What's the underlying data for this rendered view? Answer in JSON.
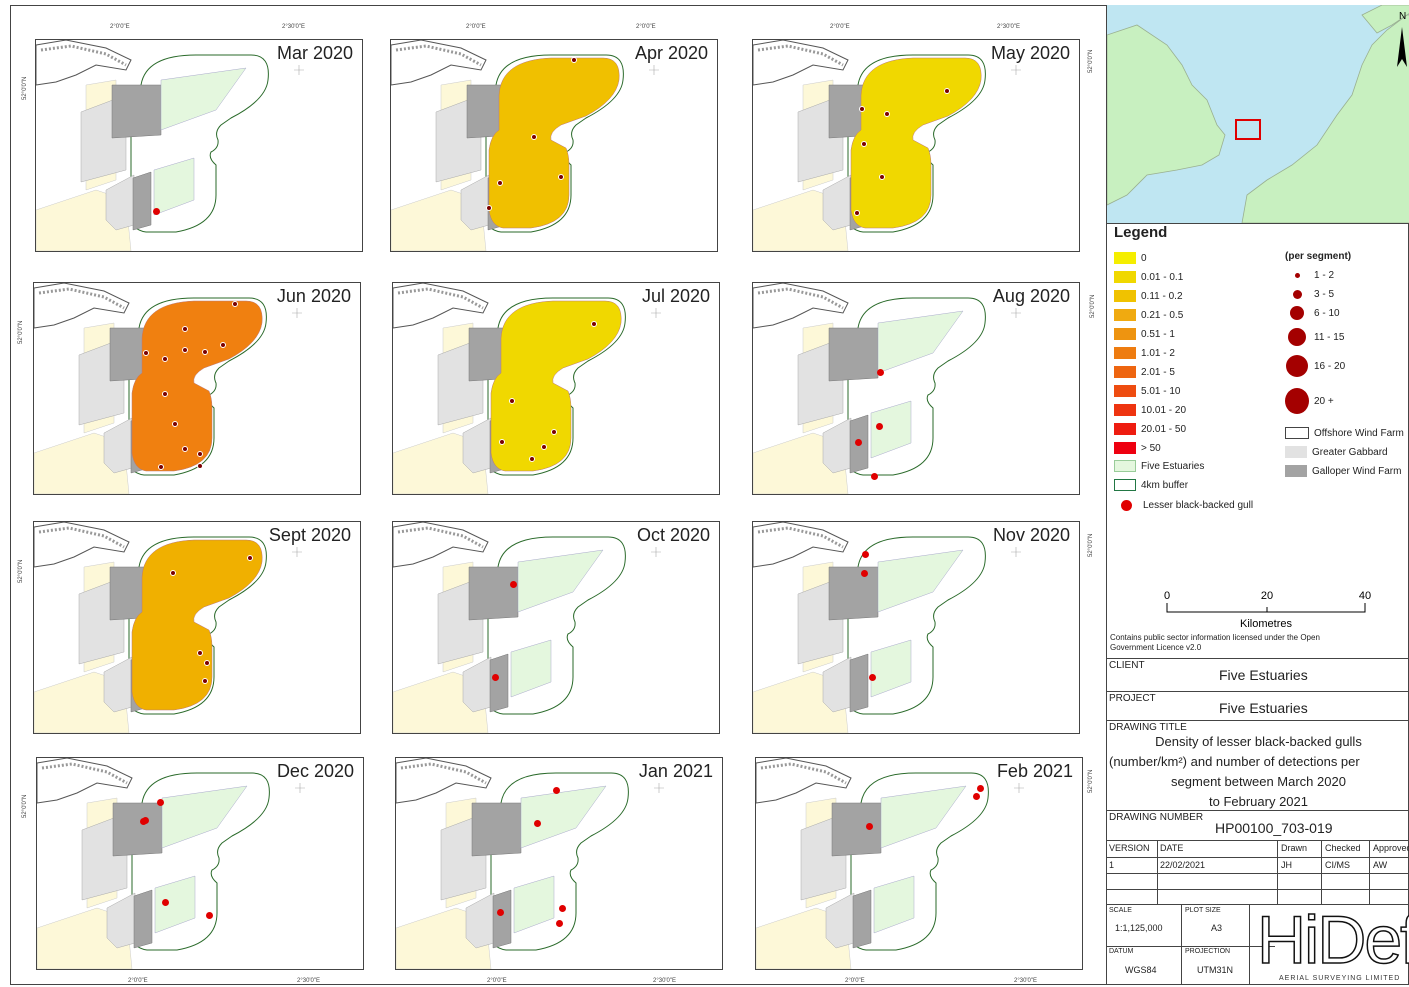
{
  "maps": [
    {
      "title": "Mar 2020",
      "fill": "none",
      "points": [
        [
          120,
          171
        ]
      ],
      "marker": "gull"
    },
    {
      "title": "Apr 2020",
      "fill": "#f0c000",
      "points": [
        [
          169,
          136
        ],
        [
          108,
          142
        ],
        [
          97,
          167
        ],
        [
          182,
          19
        ],
        [
          142,
          96
        ]
      ],
      "marker": "density"
    },
    {
      "title": "May 2020",
      "fill": "#f0d800",
      "points": [
        [
          108,
          68
        ],
        [
          133,
          73
        ],
        [
          128,
          136
        ],
        [
          103,
          172
        ],
        [
          193,
          50
        ],
        [
          110,
          103
        ]
      ],
      "marker": "density"
    },
    {
      "title": "Jun 2020",
      "fill": "#f08010",
      "points": [
        [
          111,
          69
        ],
        [
          130,
          75
        ],
        [
          150,
          66
        ],
        [
          170,
          68
        ],
        [
          188,
          61
        ],
        [
          200,
          20
        ],
        [
          150,
          45
        ],
        [
          130,
          110
        ],
        [
          140,
          140
        ],
        [
          150,
          165
        ],
        [
          165,
          170
        ],
        [
          126,
          183
        ],
        [
          165,
          182
        ]
      ],
      "marker": "density"
    },
    {
      "title": "Jul 2020",
      "fill": "#f0d800",
      "points": [
        [
          118,
          117
        ],
        [
          160,
          148
        ],
        [
          138,
          175
        ],
        [
          150,
          163
        ],
        [
          108,
          158
        ],
        [
          200,
          40
        ]
      ],
      "marker": "density"
    },
    {
      "title": "Aug 2020",
      "fill": "none",
      "points": [
        [
          127,
          89
        ],
        [
          105,
          159
        ],
        [
          126,
          143
        ],
        [
          121,
          193
        ]
      ],
      "marker": "gull"
    },
    {
      "title": "Sept 2020",
      "fill": "#f0b000",
      "points": [
        [
          165,
          130
        ],
        [
          172,
          140
        ],
        [
          170,
          158
        ],
        [
          138,
          50
        ],
        [
          215,
          35
        ]
      ],
      "marker": "density"
    },
    {
      "title": "Oct 2020",
      "fill": "none",
      "points": [
        [
          120,
          62
        ],
        [
          102,
          155
        ]
      ],
      "marker": "gull"
    },
    {
      "title": "Nov 2020",
      "fill": "none",
      "points": [
        [
          112,
          32
        ],
        [
          111,
          51
        ],
        [
          119,
          155
        ]
      ],
      "marker": "gull"
    },
    {
      "title": "Dec 2020",
      "fill": "none",
      "points": [
        [
          123,
          44
        ],
        [
          108,
          62
        ],
        [
          106,
          63
        ],
        [
          128,
          144
        ],
        [
          172,
          157
        ]
      ],
      "marker": "gull"
    },
    {
      "title": "Jan 2021",
      "fill": "none",
      "points": [
        [
          160,
          32
        ],
        [
          141,
          65
        ],
        [
          104,
          154
        ],
        [
          166,
          150
        ],
        [
          163,
          165
        ]
      ],
      "marker": "gull"
    },
    {
      "title": "Feb 2021",
      "fill": "none",
      "points": [
        [
          224,
          30
        ],
        [
          220,
          38
        ],
        [
          113,
          68
        ]
      ],
      "marker": "gull"
    }
  ],
  "ticks": {
    "top_a": "2°0'0\"E",
    "top_b": "2°30'0\"E",
    "lat": "52°0'0\"N"
  },
  "legend": {
    "title": "Legend",
    "density": [
      {
        "label": "0",
        "color": "#f5ee00"
      },
      {
        "label": "0.01 - 0.1",
        "color": "#f0d800"
      },
      {
        "label": "0.11 - 0.2",
        "color": "#f0c200"
      },
      {
        "label": "0.21 - 0.5",
        "color": "#f0aa10"
      },
      {
        "label": "0.51 - 1",
        "color": "#ee9410"
      },
      {
        "label": "1.01 - 2",
        "color": "#ee7c10"
      },
      {
        "label": "2.01 - 5",
        "color": "#ee6510"
      },
      {
        "label": "5.01 - 10",
        "color": "#ee4c10"
      },
      {
        "label": "10.01 - 20",
        "color": "#ee3410"
      },
      {
        "label": "20.01 - 50",
        "color": "#ee1c10"
      },
      {
        "label": "> 50",
        "color": "#ee0010"
      }
    ],
    "five_estuaries": "Five Estuaries",
    "buffer": "4km buffer",
    "gull": "Lesser black-backed gull",
    "segment_title": "(per segment)",
    "segments": [
      {
        "label": "1 - 2",
        "size": 5
      },
      {
        "label": "3 - 5",
        "size": 9
      },
      {
        "label": "6 - 10",
        "size": 14
      },
      {
        "label": "11 - 15",
        "size": 18
      },
      {
        "label": "16 - 20",
        "size": 22
      },
      {
        "label": "20 +",
        "size": 26
      }
    ],
    "offshore": "Offshore Wind Farm",
    "gabbard": "Greater Gabbard",
    "galloper": "Galloper Wind Farm"
  },
  "scalebar": {
    "t0": "0",
    "t1": "20",
    "t2": "40",
    "unit": "Kilometres"
  },
  "licence": "Contains public sector information licensed under the Open Government Licence v2.0",
  "title_block": {
    "client_label": "CLIENT",
    "client": "Five Estuaries",
    "project_label": "PROJECT",
    "project": "Five Estuaries",
    "drawing_title_label": "DRAWING TITLE",
    "drawing_title_1": "Density of lesser black-backed gulls",
    "drawing_title_2": "(number/km²) and number of detections per",
    "drawing_title_3": "segment between March 2020",
    "drawing_title_4": "to February 2021",
    "drawing_number_label": "DRAWING NUMBER",
    "drawing_number": "HP00100_703-019",
    "version_label": "VERSION",
    "version": "1",
    "date_label": "DATE",
    "date": "22/02/2021",
    "drawn_label": "Drawn",
    "drawn": "JH",
    "checked_label": "Checked",
    "checked": "CI/MS",
    "approved_label": "Approved",
    "approved": "AW",
    "scale_label": "SCALE",
    "scale": "1:1,125,000",
    "plot_label": "PLOT SIZE",
    "plot": "A3",
    "datum_label": "DATUM",
    "datum": "WGS84",
    "projection_label": "PROJECTION",
    "projection": "UTM31N",
    "logo": "HiDef",
    "logo_sub": "AERIAL SURVEYING LIMITED"
  },
  "north": "N",
  "colors": {
    "windfarm": "#e4f7de",
    "gabbard": "#e2e2e2",
    "galloper": "#a3a3a3",
    "coast": "#fdf8d8",
    "gull": "#e00000"
  }
}
